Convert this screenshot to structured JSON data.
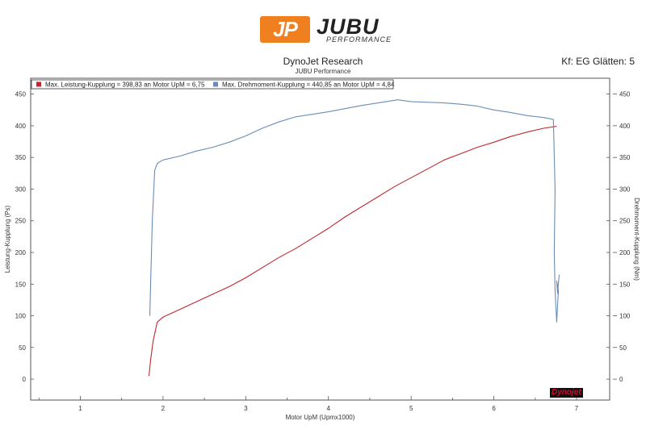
{
  "logo": {
    "badge": "JP",
    "word": "JUBU",
    "sub": "PERFORMANCE"
  },
  "chart_data": {
    "type": "line",
    "title": "DynoJet Research",
    "subtitle": "JUBU Performance",
    "smoothing_note": "Kf: EG Glätten: 5",
    "xlabel": "Motor UpM (Upmx1000)",
    "ylabel_left": "Leistung-Kupplung (Ps)",
    "ylabel_right": "Drehmoment-Kupplung (Nm)",
    "xlim": [
      0.4,
      7.4
    ],
    "ylim": [
      -33,
      475
    ],
    "xticks": [
      1,
      2,
      3,
      4,
      5,
      6,
      7
    ],
    "yticks": [
      0,
      50,
      100,
      150,
      200,
      250,
      300,
      350,
      400,
      450
    ],
    "grid": false,
    "legend_position": "top-left",
    "series": [
      {
        "name": "Max. Leistung-Kupplung = 398,83 an Motor UpM = 6,75",
        "color": "#c0282d",
        "x": [
          1.83,
          1.85,
          1.88,
          1.93,
          2.0,
          2.2,
          2.4,
          2.6,
          2.8,
          3.0,
          3.2,
          3.4,
          3.6,
          3.8,
          4.0,
          4.2,
          4.4,
          4.6,
          4.8,
          5.0,
          5.2,
          5.4,
          5.6,
          5.8,
          6.0,
          6.2,
          6.4,
          6.6,
          6.75,
          6.76
        ],
        "y": [
          5,
          30,
          60,
          90,
          98,
          110,
          122,
          134,
          146,
          160,
          176,
          192,
          206,
          222,
          238,
          256,
          272,
          288,
          304,
          318,
          332,
          346,
          356,
          366,
          374,
          383,
          390,
          396,
          399,
          399
        ]
      },
      {
        "name": "Max. Drehmoment-Kupplung = 440,85 an Motor UpM = 4,84",
        "color": "#6b8db5",
        "x": [
          1.84,
          1.87,
          1.9,
          1.93,
          1.96,
          2.0,
          2.2,
          2.4,
          2.6,
          2.8,
          3.0,
          3.2,
          3.4,
          3.6,
          3.8,
          4.0,
          4.2,
          4.4,
          4.6,
          4.84,
          5.0,
          5.2,
          5.4,
          5.6,
          5.8,
          6.0,
          6.2,
          6.4,
          6.6,
          6.72,
          6.74,
          6.73,
          6.74,
          6.76,
          6.78,
          6.76,
          6.77,
          6.79
        ],
        "y": [
          100,
          250,
          330,
          340,
          343,
          346,
          352,
          360,
          366,
          374,
          384,
          396,
          406,
          414,
          418,
          422,
          427,
          432,
          436,
          441,
          438,
          437,
          436,
          434,
          431,
          425,
          421,
          416,
          413,
          410,
          300,
          200,
          140,
          90,
          140,
          155,
          135,
          165
        ]
      }
    ]
  }
}
